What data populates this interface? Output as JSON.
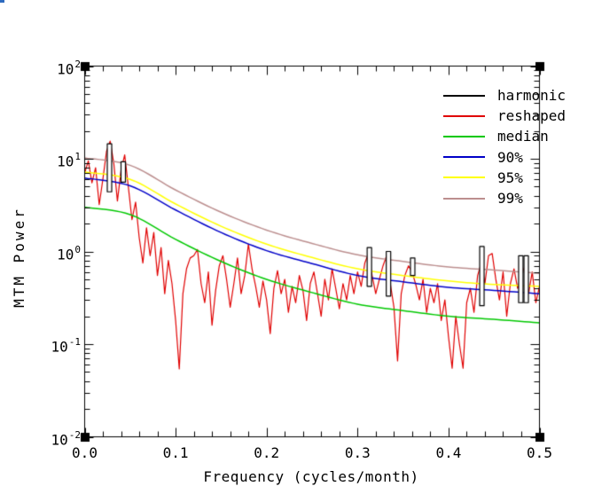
{
  "window": {
    "background": "#ffffff"
  },
  "decorations": {
    "top_left_artifact_color": "#2e6bbf"
  },
  "chart_data": {
    "type": "line",
    "title": "",
    "xlabel": "Frequency (cycles/month)",
    "ylabel": "MTM Power",
    "xscale": "linear",
    "yscale": "log",
    "xlim": [
      0.0,
      0.5
    ],
    "ylim": [
      0.01,
      100
    ],
    "grid": false,
    "frame_color": "#000000",
    "x_ticks": {
      "major": [
        0.0,
        0.1,
        0.2,
        0.3,
        0.4,
        0.5
      ],
      "labels": [
        "0.0",
        "0.1",
        "0.2",
        "0.3",
        "0.4",
        "0.5"
      ],
      "minor_step": 0.02
    },
    "y_ticks": {
      "major": [
        100,
        10,
        1,
        0.1,
        0.01
      ],
      "labels": [
        {
          "base": "10",
          "exp": "2"
        },
        {
          "base": "10",
          "exp": "1"
        },
        {
          "base": "10",
          "exp": "0"
        },
        {
          "base": "10",
          "exp": "-1"
        },
        {
          "base": "10",
          "exp": "-2"
        }
      ],
      "log_minor_mantissas": [
        2,
        3,
        4,
        5,
        6,
        7,
        8,
        9
      ]
    },
    "legend": {
      "position": "top-right-inside",
      "items": [
        {
          "label": "harmonic",
          "color": "#000000"
        },
        {
          "label": "reshaped",
          "color": "#e00000"
        },
        {
          "label": "median",
          "color": "#00c800"
        },
        {
          "label": "90%",
          "color": "#0000c8"
        },
        {
          "label": "95%",
          "color": "#ffff00"
        },
        {
          "label": "99%",
          "color": "#bc8f8f"
        }
      ]
    },
    "series": [
      {
        "name": "reshaped",
        "style": "jagged",
        "color": "#e00000",
        "x_start": 0.0,
        "x_step": 0.004,
        "values": [
          7.0,
          9.5,
          5.5,
          8.0,
          3.2,
          6.0,
          12.0,
          15.5,
          9.0,
          3.5,
          7.5,
          11.0,
          5.0,
          2.2,
          3.4,
          1.4,
          0.75,
          1.8,
          0.9,
          1.6,
          0.55,
          1.1,
          0.35,
          0.8,
          0.45,
          0.18,
          0.054,
          0.35,
          0.65,
          0.85,
          0.9,
          1.05,
          0.45,
          0.28,
          0.6,
          0.16,
          0.38,
          0.7,
          0.9,
          0.5,
          0.25,
          0.45,
          0.85,
          0.35,
          0.55,
          1.2,
          0.65,
          0.42,
          0.25,
          0.48,
          0.3,
          0.13,
          0.4,
          0.62,
          0.35,
          0.5,
          0.22,
          0.42,
          0.28,
          0.55,
          0.38,
          0.18,
          0.45,
          0.6,
          0.35,
          0.2,
          0.5,
          0.3,
          0.65,
          0.4,
          0.24,
          0.45,
          0.3,
          0.55,
          0.35,
          0.6,
          0.42,
          0.75,
          0.95,
          0.55,
          0.35,
          0.5,
          0.7,
          0.9,
          0.45,
          0.25,
          0.066,
          0.35,
          0.55,
          0.7,
          0.6,
          0.44,
          0.3,
          0.5,
          0.22,
          0.4,
          0.28,
          0.45,
          0.18,
          0.3,
          0.12,
          0.055,
          0.2,
          0.1,
          0.055,
          0.28,
          0.4,
          0.22,
          0.55,
          0.75,
          0.45,
          0.9,
          0.95,
          0.5,
          0.3,
          0.6,
          0.2,
          0.45,
          0.65,
          0.4,
          0.55,
          0.7,
          0.35,
          0.6,
          0.28,
          0.42
        ]
      },
      {
        "name": "median",
        "style": "smooth",
        "color": "#00c800",
        "points": [
          [
            0,
            3.0
          ],
          [
            0.05,
            2.5
          ],
          [
            0.1,
            1.35
          ],
          [
            0.15,
            0.78
          ],
          [
            0.2,
            0.5
          ],
          [
            0.25,
            0.36
          ],
          [
            0.3,
            0.27
          ],
          [
            0.35,
            0.23
          ],
          [
            0.4,
            0.2
          ],
          [
            0.45,
            0.185
          ],
          [
            0.5,
            0.17
          ]
        ]
      },
      {
        "name": "90%",
        "style": "smooth",
        "color": "#0000c8",
        "points": [
          [
            0,
            6.2
          ],
          [
            0.05,
            5.1
          ],
          [
            0.1,
            2.8
          ],
          [
            0.15,
            1.6
          ],
          [
            0.2,
            1.02
          ],
          [
            0.25,
            0.74
          ],
          [
            0.3,
            0.55
          ],
          [
            0.35,
            0.47
          ],
          [
            0.4,
            0.41
          ],
          [
            0.45,
            0.38
          ],
          [
            0.5,
            0.35
          ]
        ]
      },
      {
        "name": "95%",
        "style": "smooth",
        "color": "#ffff00",
        "points": [
          [
            0,
            7.2
          ],
          [
            0.05,
            6.0
          ],
          [
            0.1,
            3.25
          ],
          [
            0.15,
            1.87
          ],
          [
            0.2,
            1.2
          ],
          [
            0.25,
            0.86
          ],
          [
            0.3,
            0.65
          ],
          [
            0.35,
            0.55
          ],
          [
            0.4,
            0.48
          ],
          [
            0.45,
            0.44
          ],
          [
            0.5,
            0.42
          ]
        ]
      },
      {
        "name": "99%",
        "style": "smooth",
        "color": "#bc8f8f",
        "points": [
          [
            0,
            10.2
          ],
          [
            0.05,
            8.5
          ],
          [
            0.1,
            4.6
          ],
          [
            0.15,
            2.65
          ],
          [
            0.2,
            1.7
          ],
          [
            0.25,
            1.22
          ],
          [
            0.3,
            0.92
          ],
          [
            0.35,
            0.78
          ],
          [
            0.4,
            0.68
          ],
          [
            0.45,
            0.63
          ],
          [
            0.5,
            0.58
          ]
        ]
      },
      {
        "name": "harmonic",
        "style": "spikes",
        "color": "#000000",
        "fill": "#ffffff",
        "spikes": [
          {
            "f": 0.0273,
            "top": 14.5,
            "base": 4.4
          },
          {
            "f": 0.0424,
            "top": 9.3,
            "base": 5.6
          },
          {
            "f": 0.313,
            "top": 1.1,
            "base": 0.42
          },
          {
            "f": 0.334,
            "top": 1.0,
            "base": 0.33
          },
          {
            "f": 0.3606,
            "top": 0.85,
            "base": 0.55
          },
          {
            "f": 0.4367,
            "top": 1.13,
            "base": 0.26
          },
          {
            "f": 0.4795,
            "top": 0.9,
            "base": 0.28
          },
          {
            "f": 0.4854,
            "top": 0.9,
            "base": 0.28
          }
        ]
      }
    ]
  }
}
